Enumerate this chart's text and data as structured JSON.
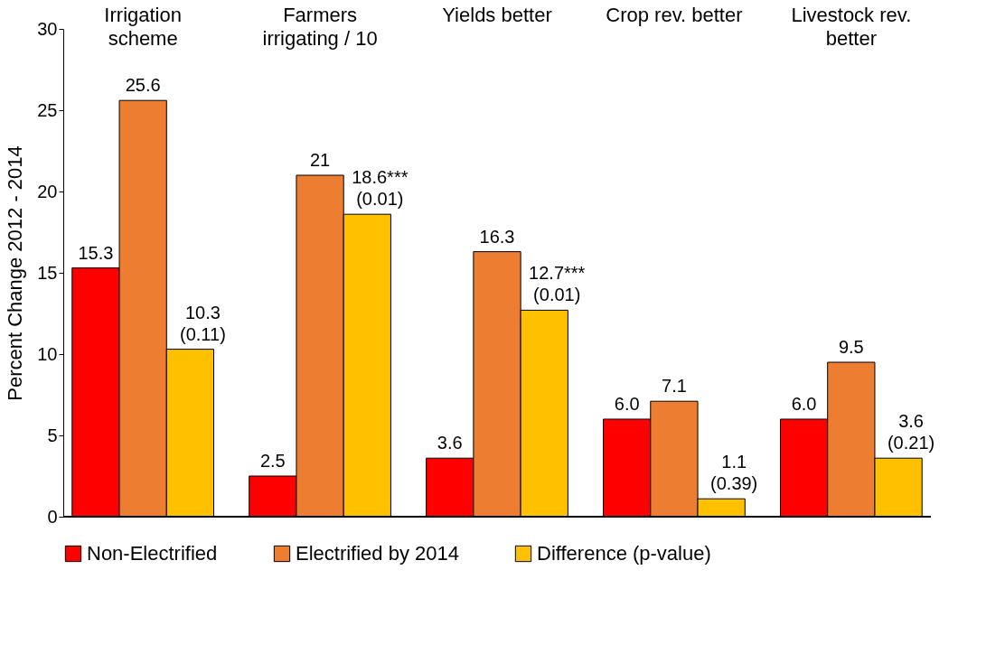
{
  "chart_data": {
    "type": "bar",
    "categories": [
      "Irrigation\nscheme",
      "Farmers\nirrigating / 10",
      "Yields better",
      "Crop rev. better",
      "Livestock rev.\nbetter"
    ],
    "ylabel": "Percent Change  2012 - 2014",
    "ylim": [
      0,
      30
    ],
    "yticks": [
      0,
      5,
      10,
      15,
      20,
      25,
      30
    ],
    "grid": false,
    "legend": "bottom",
    "series": [
      {
        "name": "Non-Electrified",
        "color": "#ff0000",
        "values": [
          15.3,
          2.5,
          3.6,
          6.0,
          6.0
        ],
        "value_labels": [
          "15.3",
          "2.5",
          "3.6",
          "6.0",
          "6.0"
        ]
      },
      {
        "name": "Electrified by 2014",
        "color": "#ed7d31",
        "values": [
          25.6,
          21,
          16.3,
          7.1,
          9.5
        ],
        "value_labels": [
          "25.6",
          "21",
          "16.3",
          "7.1",
          "9.5"
        ]
      },
      {
        "name": "Difference (p-value)",
        "color": "#ffc000",
        "values": [
          10.3,
          18.6,
          12.7,
          1.1,
          3.6
        ],
        "value_labels": [
          "10.3\n(0.11)",
          "18.6***\n(0.01)",
          "12.7***\n(0.01)",
          "1.1\n(0.39)",
          "3.6\n(0.21)"
        ]
      }
    ]
  }
}
